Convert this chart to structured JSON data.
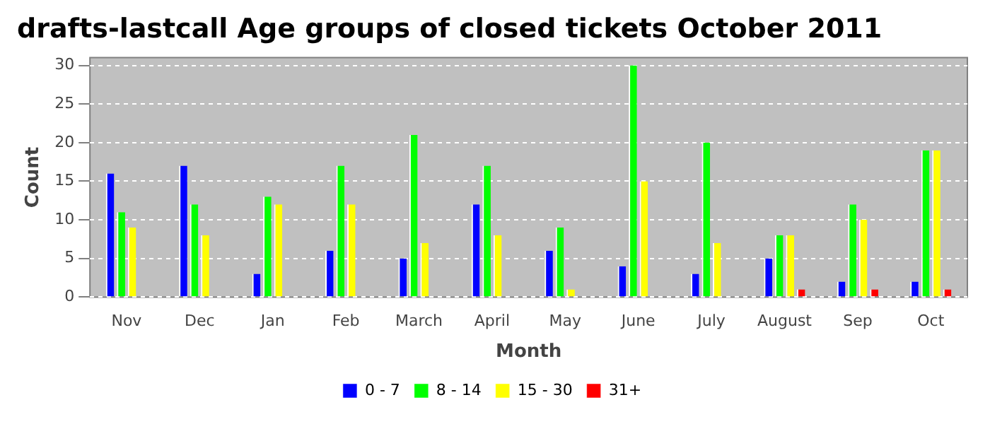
{
  "chart_data": {
    "type": "bar",
    "title": "drafts-lastcall Age groups of closed tickets October 2011",
    "xlabel": "Month",
    "ylabel": "Count",
    "categories": [
      "Nov",
      "Dec",
      "Jan",
      "Feb",
      "March",
      "April",
      "May",
      "June",
      "July",
      "August",
      "Sep",
      "Oct"
    ],
    "series": [
      {
        "name": "0 - 7",
        "color": "#0000ff",
        "values": [
          16,
          17,
          3,
          6,
          5,
          12,
          6,
          4,
          3,
          5,
          2,
          2
        ]
      },
      {
        "name": "8 - 14",
        "color": "#00ff00",
        "values": [
          11,
          12,
          13,
          17,
          21,
          17,
          9,
          30,
          20,
          8,
          12,
          19
        ]
      },
      {
        "name": "15 - 30",
        "color": "#ffff00",
        "values": [
          9,
          8,
          12,
          12,
          7,
          8,
          1,
          15,
          7,
          8,
          10,
          19
        ]
      },
      {
        "name": "31+",
        "color": "#ff0000",
        "values": [
          0,
          0,
          0,
          0,
          0,
          0,
          0,
          0,
          0,
          1,
          1,
          1
        ]
      }
    ],
    "ylim": [
      0,
      31
    ],
    "yticks": [
      0,
      5,
      10,
      15,
      20,
      25,
      30
    ],
    "grid": "y",
    "legend": "bottom"
  }
}
